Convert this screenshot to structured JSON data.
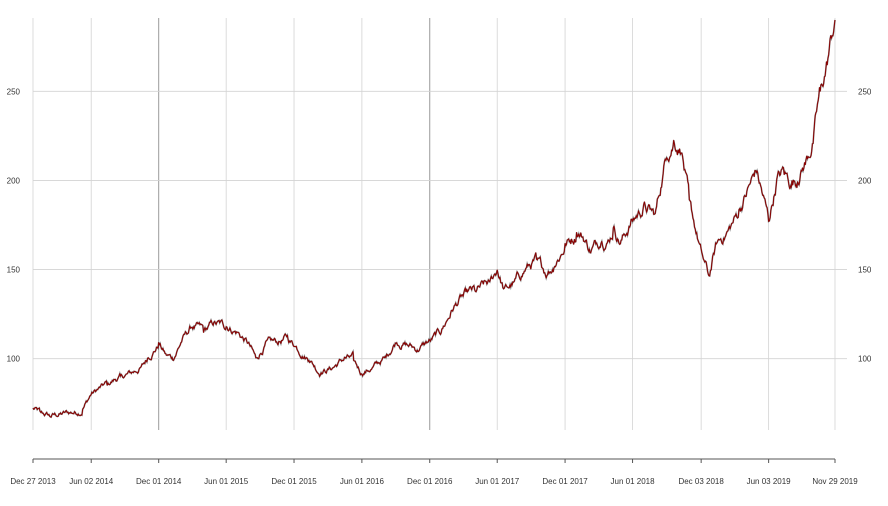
{
  "chart_data": {
    "type": "line",
    "title": "",
    "xlabel": "",
    "ylabel": "",
    "x_tick_labels": [
      "Dec 27 2013",
      "Jun 02 2014",
      "Dec 01 2014",
      "Jun 01 2015",
      "Dec 01 2015",
      "Jun 01 2016",
      "Dec 01 2016",
      "Jun 01 2017",
      "Dec 01 2017",
      "Jun 01 2018",
      "Dec 03 2018",
      "Jun 03 2019",
      "Nov 29 2019"
    ],
    "y_ticks": [
      100,
      150,
      200,
      250
    ],
    "ylim": [
      60,
      290
    ],
    "xlim": [
      "2013-12-27",
      "2019-11-29"
    ],
    "grid": true,
    "series_color": "#8b0000",
    "major_gridline_dates": [
      "2014-12-01",
      "2016-12-01"
    ],
    "series": [
      {
        "x": [
          "2013-12-27",
          "2014-01-15",
          "2014-02-10",
          "2014-03-15",
          "2014-04-20",
          "2014-05-10",
          "2014-06-02",
          "2014-07-15",
          "2014-08-20",
          "2014-09-20",
          "2014-10-15",
          "2014-11-01",
          "2014-12-01",
          "2014-12-20",
          "2015-01-10",
          "2015-02-01",
          "2015-03-01",
          "2015-04-01",
          "2015-05-01",
          "2015-06-01",
          "2015-07-01",
          "2015-08-01",
          "2015-08-20",
          "2015-09-15",
          "2015-10-15",
          "2015-11-15",
          "2015-12-01",
          "2016-01-10",
          "2016-02-10",
          "2016-03-15",
          "2016-04-15",
          "2016-05-10",
          "2016-06-01",
          "2016-07-01",
          "2016-08-01",
          "2016-09-01",
          "2016-10-01",
          "2016-11-01",
          "2016-12-01",
          "2017-01-01",
          "2017-02-01",
          "2017-03-01",
          "2017-04-01",
          "2017-05-10",
          "2017-06-01",
          "2017-06-20",
          "2017-07-15",
          "2017-08-15",
          "2017-09-15",
          "2017-10-15",
          "2017-11-01",
          "2017-12-01",
          "2018-01-01",
          "2018-01-20",
          "2018-02-10",
          "2018-03-10",
          "2018-03-25",
          "2018-04-10",
          "2018-05-01",
          "2018-06-01",
          "2018-07-01",
          "2018-08-01",
          "2018-09-01",
          "2018-09-20",
          "2018-10-10",
          "2018-11-01",
          "2018-12-03",
          "2018-12-24",
          "2019-01-15",
          "2019-02-15",
          "2019-03-15",
          "2019-04-15",
          "2019-05-01",
          "2019-05-20",
          "2019-06-03",
          "2019-06-25",
          "2019-07-15",
          "2019-08-05",
          "2019-08-20",
          "2019-09-10",
          "2019-10-01",
          "2019-10-20",
          "2019-11-10",
          "2019-11-29"
        ],
        "values": [
          72,
          70,
          68,
          69,
          70,
          71,
          80,
          86,
          90,
          92,
          95,
          100,
          108,
          102,
          100,
          110,
          118,
          116,
          120,
          118,
          115,
          108,
          100,
          108,
          109,
          112,
          108,
          100,
          92,
          95,
          100,
          100,
          92,
          95,
          100,
          110,
          108,
          105,
          110,
          115,
          128,
          135,
          138,
          142,
          150,
          138,
          142,
          150,
          155,
          148,
          152,
          163,
          170,
          168,
          160,
          168,
          165,
          172,
          165,
          178,
          185,
          180,
          215,
          222,
          218,
          188,
          160,
          146,
          165,
          172,
          182,
          198,
          206,
          190,
          178,
          200,
          205,
          198,
          200,
          210,
          222,
          250,
          268,
          290
        ]
      }
    ]
  }
}
